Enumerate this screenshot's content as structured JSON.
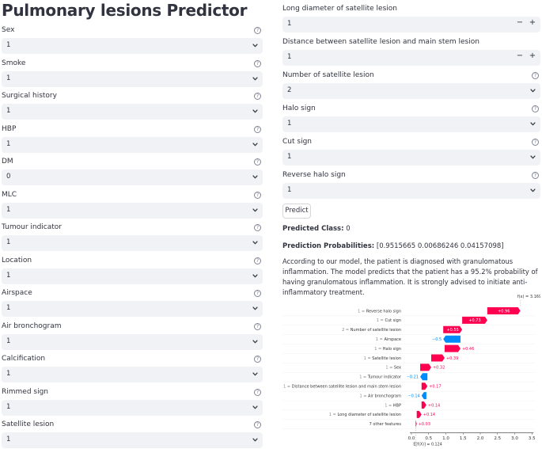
{
  "title": "Pulmonary lesions Predictor",
  "left_fields": [
    {
      "label": "Sex",
      "value": "1"
    },
    {
      "label": "Smoke",
      "value": "1"
    },
    {
      "label": "Surgical history",
      "value": "1"
    },
    {
      "label": "HBP",
      "value": "1"
    },
    {
      "label": "DM",
      "value": "0"
    },
    {
      "label": "MLC",
      "value": "1"
    },
    {
      "label": "Tumour indicator",
      "value": "1"
    },
    {
      "label": "Location",
      "value": "1"
    },
    {
      "label": "Airspace",
      "value": "1"
    },
    {
      "label": "Air bronchogram",
      "value": "1"
    },
    {
      "label": "Calcification",
      "value": "1"
    },
    {
      "label": "Rimmed sign",
      "value": "1"
    },
    {
      "label": "Satellite lesion",
      "value": "1"
    }
  ],
  "right_numbers": [
    {
      "label": "Long diameter of satellite lesion",
      "value": "1",
      "minus": "−",
      "plus": "+"
    },
    {
      "label": "Distance between satellite lesion and main stem lesion",
      "value": "1",
      "minus": "−",
      "plus": "+"
    }
  ],
  "right_selects": [
    {
      "label": "Number of satellite lesion",
      "value": "2"
    },
    {
      "label": "Halo sign",
      "value": "1"
    },
    {
      "label": "Cut sign",
      "value": "1"
    },
    {
      "label": "Reverse halo sign",
      "value": "1"
    }
  ],
  "help_glyph": "?",
  "predict_label": "Predict",
  "predicted_class_label": "Predicted Class:",
  "predicted_class_value": "0",
  "probabilities_label": "Prediction Probabilities:",
  "probabilities_value": "[0.9515665 0.00686246 0.04157098]",
  "explanation": "According to our model, the patient is diagnosed with granulomatous inflammation. The model predicts that the patient has a 95.2% probability of having granulomatous inflammation. It is strongly advised to initiate anti-inflammatory treatment.",
  "chart_data": {
    "type": "bar",
    "subtype": "shap-waterfall",
    "fx_label": "f(x) = 3.169",
    "efx_label": "E[f(X)] = 0.124",
    "base_value": 0.124,
    "final_value": 3.169,
    "xlim": [
      0,
      3.5
    ],
    "xticks": [
      "0.0",
      "0.5",
      "1.0",
      "1.5",
      "2.0",
      "2.5",
      "3.0",
      "3.5"
    ],
    "positive_color": "#ff0051",
    "negative_color": "#008bfb",
    "features": [
      {
        "feature_value": "1",
        "name": "Reverse halo sign",
        "contribution": 0.96,
        "label": "+0.96"
      },
      {
        "feature_value": "1",
        "name": "Cut sign",
        "contribution": 0.73,
        "label": "+0.73"
      },
      {
        "feature_value": "2",
        "name": "Number of satellite lesion",
        "contribution": 0.55,
        "label": "+0.55"
      },
      {
        "feature_value": "1",
        "name": "Airspace",
        "contribution": -0.5,
        "label": "−0.5"
      },
      {
        "feature_value": "1",
        "name": "Halo sign",
        "contribution": 0.46,
        "label": "+0.46"
      },
      {
        "feature_value": "1",
        "name": "Satellite lesion",
        "contribution": 0.39,
        "label": "+0.39"
      },
      {
        "feature_value": "1",
        "name": "Sex",
        "contribution": 0.32,
        "label": "+0.32"
      },
      {
        "feature_value": "1",
        "name": "Tumour indicator",
        "contribution": -0.21,
        "label": "−0.21"
      },
      {
        "feature_value": "1",
        "name": "Distance between satellite lesion and main stem lesion",
        "contribution": 0.17,
        "label": "+0.17"
      },
      {
        "feature_value": "1",
        "name": "Air bronchogram",
        "contribution": -0.14,
        "label": "−0.14"
      },
      {
        "feature_value": "1",
        "name": "HBP",
        "contribution": 0.14,
        "label": "+0.14"
      },
      {
        "feature_value": "1",
        "name": "Long diameter of satellite lesion",
        "contribution": 0.14,
        "label": "+0.14"
      },
      {
        "feature_value": "",
        "name": "7 other features",
        "contribution": 0.03,
        "label": "+0.03"
      }
    ]
  }
}
